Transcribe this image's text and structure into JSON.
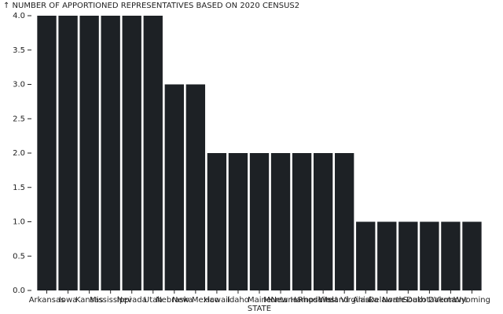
{
  "chart_data": {
    "type": "bar",
    "title": "↑ NUMBER OF APPORTIONED REPRESENTATIVES BASED ON 2020 CENSUS2",
    "x_label": "STATE",
    "categories": [
      "Arkansas",
      "Iowa",
      "Kansas",
      "Mississippi",
      "Nevada",
      "Utah",
      "Nebraska",
      "New Mexico",
      "Hawaii",
      "Idaho",
      "Maine",
      "Montana",
      "New Hampshire",
      "Rhode Island",
      "West Virginia",
      "Alaska",
      "Delaware",
      "North Dakota",
      "South Dakota",
      "Vermont",
      "Wyoming"
    ],
    "values": [
      4,
      4,
      4,
      4,
      4,
      4,
      3,
      3,
      2,
      2,
      2,
      2,
      2,
      2,
      2,
      1,
      1,
      1,
      1,
      1,
      1
    ],
    "color": "#1d2125",
    "ylim": [
      0,
      4
    ],
    "yticks": [
      {
        "value": 0,
        "label": "0.0"
      },
      0.5,
      {
        "value": 1,
        "label": "1.0"
      },
      1.5,
      {
        "value": 2,
        "label": "2.0"
      },
      2.5,
      {
        "value": 3,
        "label": "3.0"
      },
      3.5,
      {
        "value": 4,
        "label": "4.0"
      }
    ],
    "grid": false
  }
}
